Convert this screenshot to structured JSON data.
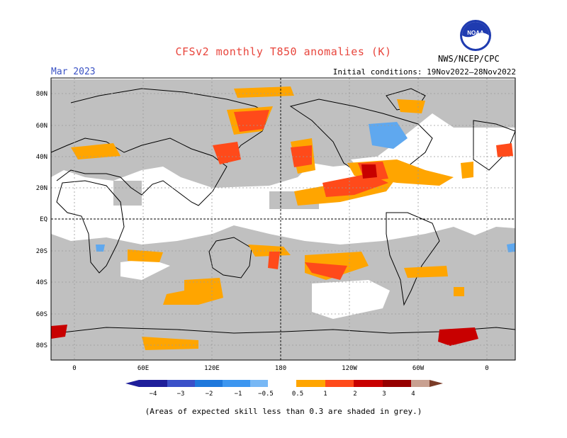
{
  "header": {
    "title": "CFSv2 monthly T850 anomalies (K)",
    "month": "Mar 2023",
    "initial_conditions": "Initial conditions: 19Nov2022–28Nov2022",
    "agency": "NWS/NCEP/CPC",
    "logo_text": "NOAA"
  },
  "map": {
    "projection": "cylindrical equidistant",
    "lat_labels": [
      "80N",
      "60N",
      "40N",
      "20N",
      "EQ",
      "20S",
      "40S",
      "60S",
      "80S"
    ],
    "lon_labels": [
      "0",
      "60E",
      "120E",
      "180",
      "120W",
      "60W",
      "0"
    ],
    "grid_lines": "dashed",
    "colors": {
      "skill_shade": "#c0c0c0",
      "map_background": "#ffffff",
      "coastline": "#000000",
      "anom_pos_0_5_1": "#ffa500",
      "anom_pos_1_2": "#ff4a1a",
      "anom_pos_2_3": "#c80000",
      "anom_pos_3_4": "#9c0000",
      "anom_neg_0_5_1": "#5fa8ef"
    }
  },
  "legend": {
    "labels": [
      "−4",
      "−3",
      "−2",
      "−1",
      "−0.5",
      "0.5",
      "1",
      "2",
      "3",
      "4"
    ],
    "colors": [
      "#1e1e9a",
      "#3a50c8",
      "#1e78dc",
      "#3c96f0",
      "#78b8f5",
      "#ffffff",
      "#ffa500",
      "#ff4a1a",
      "#c80000",
      "#960000",
      "#c8a090",
      "#7a3c28"
    ]
  },
  "footnote": "(Areas of expected skill less than 0.3 are shaded in grey.)"
}
